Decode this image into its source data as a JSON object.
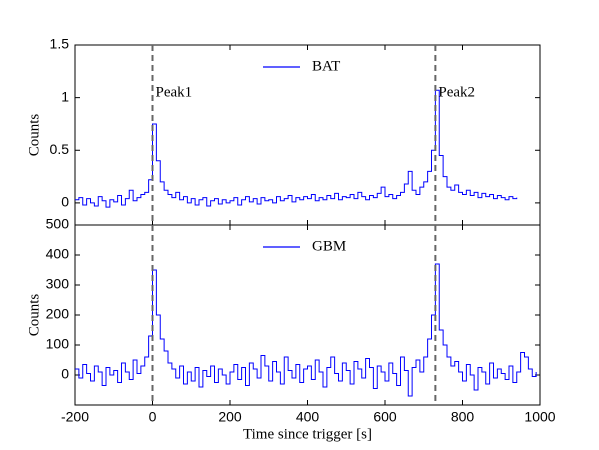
{
  "chart_data": [
    {
      "type": "line",
      "step": true,
      "series": [
        {
          "name": "BAT",
          "color": "#0000ff",
          "x": [
            -200,
            -190,
            -180,
            -170,
            -160,
            -150,
            -140,
            -130,
            -120,
            -110,
            -100,
            -90,
            -80,
            -70,
            -60,
            -50,
            -40,
            -30,
            -20,
            -10,
            0,
            10,
            20,
            30,
            40,
            50,
            60,
            70,
            80,
            90,
            100,
            110,
            120,
            130,
            140,
            150,
            160,
            170,
            180,
            190,
            200,
            210,
            220,
            230,
            240,
            250,
            260,
            270,
            280,
            290,
            300,
            310,
            320,
            330,
            340,
            350,
            360,
            370,
            380,
            390,
            400,
            410,
            420,
            430,
            440,
            450,
            460,
            470,
            480,
            490,
            500,
            510,
            520,
            530,
            540,
            550,
            560,
            570,
            580,
            590,
            600,
            610,
            620,
            630,
            640,
            650,
            660,
            670,
            680,
            690,
            700,
            710,
            720,
            730,
            740,
            750,
            760,
            770,
            780,
            790,
            800,
            810,
            820,
            830,
            840,
            850,
            860,
            870,
            880,
            890,
            900,
            910,
            920,
            930,
            940
          ],
          "values": [
            0.03,
            0.05,
            -0.02,
            0.04,
            0.0,
            -0.03,
            0.06,
            0.02,
            -0.04,
            0.03,
            0.01,
            0.07,
            -0.02,
            0.04,
            0.12,
            0.02,
            0.05,
            0.08,
            0.1,
            0.22,
            0.75,
            0.4,
            0.2,
            0.12,
            0.08,
            0.05,
            0.1,
            0.03,
            0.06,
            0.0,
            0.04,
            -0.02,
            0.03,
            0.05,
            -0.03,
            0.02,
            0.04,
            -0.01,
            0.03,
            0.0,
            0.02,
            0.05,
            -0.02,
            0.03,
            0.06,
            0.01,
            0.04,
            -0.01,
            0.05,
            0.02,
            0.03,
            0.0,
            0.06,
            0.02,
            0.04,
            0.07,
            0.01,
            0.05,
            0.03,
            0.06,
            0.04,
            0.08,
            0.02,
            0.05,
            0.03,
            0.07,
            0.04,
            0.09,
            0.03,
            0.06,
            0.05,
            0.08,
            0.04,
            0.1,
            0.06,
            0.03,
            0.07,
            0.05,
            0.09,
            0.15,
            0.06,
            0.08,
            0.04,
            0.07,
            0.1,
            0.18,
            0.3,
            0.12,
            0.08,
            0.15,
            0.2,
            0.3,
            0.5,
            1.07,
            0.45,
            0.25,
            0.15,
            0.12,
            0.17,
            0.1,
            0.08,
            0.12,
            0.07,
            0.1,
            0.05,
            0.09,
            0.06,
            0.08,
            0.04,
            0.07,
            0.05,
            0.03,
            0.06,
            0.04,
            0.05
          ]
        }
      ],
      "ylabel": "Counts",
      "xlim": [
        -200,
        1000
      ],
      "xticks": [
        -200,
        0,
        200,
        400,
        600,
        800,
        1000
      ],
      "ylim": [
        -0.21,
        1.5
      ],
      "yticks": [
        0,
        0.5,
        1,
        1.5
      ],
      "vlines": [
        {
          "x": 0,
          "label": "Peak1"
        },
        {
          "x": 730,
          "label": "Peak2"
        }
      ]
    },
    {
      "type": "line",
      "step": true,
      "series": [
        {
          "name": "GBM",
          "color": "#0000ff",
          "x": [
            -200,
            -190,
            -180,
            -170,
            -160,
            -150,
            -140,
            -130,
            -120,
            -110,
            -100,
            -90,
            -80,
            -70,
            -60,
            -50,
            -40,
            -30,
            -20,
            -10,
            0,
            10,
            20,
            30,
            40,
            50,
            60,
            70,
            80,
            90,
            100,
            110,
            120,
            130,
            140,
            150,
            160,
            170,
            180,
            190,
            200,
            210,
            220,
            230,
            240,
            250,
            260,
            270,
            280,
            290,
            300,
            310,
            320,
            330,
            340,
            350,
            360,
            370,
            380,
            390,
            400,
            410,
            420,
            430,
            440,
            450,
            460,
            470,
            480,
            490,
            500,
            510,
            520,
            530,
            540,
            550,
            560,
            570,
            580,
            590,
            600,
            610,
            620,
            630,
            640,
            650,
            660,
            670,
            680,
            690,
            700,
            710,
            720,
            730,
            740,
            750,
            760,
            770,
            780,
            790,
            800,
            810,
            820,
            830,
            840,
            850,
            860,
            870,
            880,
            890,
            900,
            910,
            920,
            930,
            940,
            950,
            960,
            970,
            980,
            990
          ],
          "values": [
            20,
            -10,
            35,
            5,
            -20,
            30,
            10,
            -35,
            25,
            0,
            15,
            -25,
            40,
            10,
            -15,
            50,
            5,
            30,
            60,
            130,
            350,
            200,
            120,
            80,
            40,
            20,
            -10,
            30,
            -30,
            10,
            -20,
            25,
            -40,
            15,
            -5,
            30,
            -25,
            20,
            0,
            -30,
            10,
            35,
            -15,
            25,
            -35,
            40,
            20,
            -10,
            65,
            30,
            -20,
            45,
            10,
            -30,
            60,
            15,
            -10,
            35,
            -25,
            20,
            30,
            -15,
            50,
            10,
            -40,
            25,
            60,
            5,
            -20,
            40,
            15,
            -30,
            45,
            20,
            -10,
            55,
            25,
            -45,
            30,
            10,
            -20,
            40,
            5,
            -35,
            60,
            15,
            -70,
            25,
            50,
            10,
            60,
            120,
            200,
            370,
            150,
            100,
            60,
            30,
            45,
            10,
            -20,
            35,
            0,
            -50,
            25,
            10,
            -30,
            40,
            -10,
            20,
            5,
            -15,
            30,
            -25,
            10,
            75,
            60,
            20,
            -5,
            10
          ]
        }
      ],
      "ylabel": "Counts",
      "xlabel": "Time since trigger [s]",
      "xlim": [
        -200,
        1000
      ],
      "xticks": [
        -200,
        0,
        200,
        400,
        600,
        800,
        1000
      ],
      "ylim": [
        -100,
        500
      ],
      "yticks": [
        0,
        100,
        200,
        300,
        400,
        500
      ],
      "vlines": [
        {
          "x": 0
        },
        {
          "x": 730
        }
      ]
    }
  ]
}
